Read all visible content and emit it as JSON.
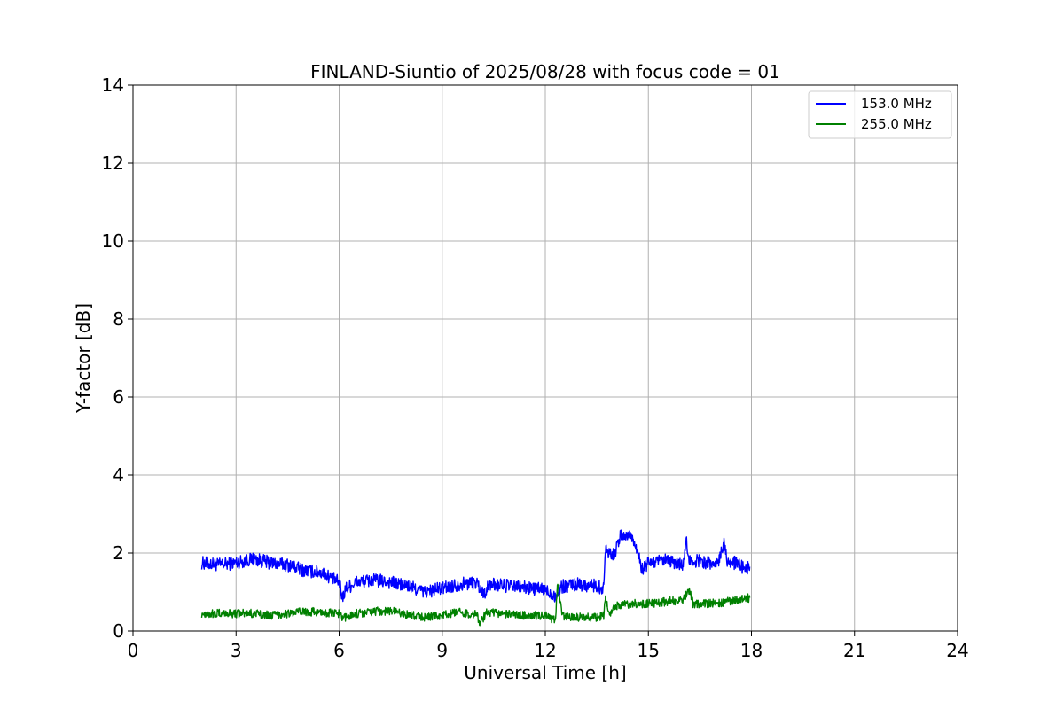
{
  "chart_data": {
    "type": "line",
    "title": "FINLAND-Siuntio of 2025/08/28 with focus code = 01",
    "xlabel": "Universal Time [h]",
    "ylabel": "Y-factor [dB]",
    "xlim": [
      0,
      24
    ],
    "ylim": [
      0,
      14
    ],
    "xticks": [
      0,
      3,
      6,
      9,
      12,
      15,
      18,
      21,
      24
    ],
    "yticks": [
      0,
      2,
      4,
      6,
      8,
      10,
      12,
      14
    ],
    "grid": true,
    "legend_position": "top-right",
    "series": [
      {
        "name": "153.0 MHz",
        "color": "#0000ff",
        "band": 0.35,
        "points": [
          [
            2.0,
            1.75
          ],
          [
            2.5,
            1.7
          ],
          [
            3.0,
            1.75
          ],
          [
            3.5,
            1.85
          ],
          [
            4.0,
            1.75
          ],
          [
            4.5,
            1.7
          ],
          [
            5.0,
            1.55
          ],
          [
            5.5,
            1.5
          ],
          [
            5.8,
            1.35
          ],
          [
            6.0,
            1.25
          ],
          [
            6.1,
            0.85
          ],
          [
            6.2,
            1.1
          ],
          [
            6.5,
            1.25
          ],
          [
            7.0,
            1.3
          ],
          [
            7.5,
            1.25
          ],
          [
            8.0,
            1.15
          ],
          [
            8.5,
            1.0
          ],
          [
            9.0,
            1.1
          ],
          [
            9.5,
            1.2
          ],
          [
            10.0,
            1.25
          ],
          [
            10.2,
            0.95
          ],
          [
            10.4,
            1.2
          ],
          [
            11.0,
            1.15
          ],
          [
            11.5,
            1.1
          ],
          [
            12.0,
            1.05
          ],
          [
            12.3,
            0.9
          ],
          [
            12.5,
            1.15
          ],
          [
            13.0,
            1.2
          ],
          [
            13.5,
            1.15
          ],
          [
            13.7,
            1.1
          ],
          [
            13.75,
            2.1
          ],
          [
            14.0,
            1.95
          ],
          [
            14.2,
            2.45
          ],
          [
            14.5,
            2.45
          ],
          [
            14.7,
            2.05
          ],
          [
            14.8,
            1.55
          ],
          [
            15.0,
            1.75
          ],
          [
            15.5,
            1.8
          ],
          [
            16.0,
            1.7
          ],
          [
            16.1,
            2.3
          ],
          [
            16.2,
            1.8
          ],
          [
            16.5,
            1.8
          ],
          [
            17.0,
            1.7
          ],
          [
            17.2,
            2.3
          ],
          [
            17.3,
            1.8
          ],
          [
            17.5,
            1.75
          ],
          [
            17.8,
            1.6
          ],
          [
            17.95,
            1.65
          ]
        ]
      },
      {
        "name": "255.0 MHz",
        "color": "#008000",
        "band": 0.22,
        "points": [
          [
            2.0,
            0.45
          ],
          [
            2.5,
            0.45
          ],
          [
            3.0,
            0.45
          ],
          [
            3.5,
            0.45
          ],
          [
            4.0,
            0.4
          ],
          [
            4.5,
            0.45
          ],
          [
            5.0,
            0.5
          ],
          [
            5.5,
            0.48
          ],
          [
            6.0,
            0.45
          ],
          [
            6.1,
            0.3
          ],
          [
            6.3,
            0.4
          ],
          [
            6.5,
            0.45
          ],
          [
            7.0,
            0.5
          ],
          [
            7.5,
            0.52
          ],
          [
            8.0,
            0.42
          ],
          [
            8.5,
            0.35
          ],
          [
            9.0,
            0.4
          ],
          [
            9.5,
            0.48
          ],
          [
            10.0,
            0.42
          ],
          [
            10.1,
            0.2
          ],
          [
            10.3,
            0.48
          ],
          [
            11.0,
            0.42
          ],
          [
            11.5,
            0.4
          ],
          [
            12.0,
            0.4
          ],
          [
            12.3,
            0.25
          ],
          [
            12.35,
            1.2
          ],
          [
            12.5,
            0.38
          ],
          [
            13.0,
            0.35
          ],
          [
            13.5,
            0.35
          ],
          [
            13.7,
            0.4
          ],
          [
            13.75,
            0.8
          ],
          [
            13.9,
            0.45
          ],
          [
            14.0,
            0.65
          ],
          [
            14.5,
            0.7
          ],
          [
            15.0,
            0.7
          ],
          [
            15.5,
            0.75
          ],
          [
            16.0,
            0.8
          ],
          [
            16.2,
            1.05
          ],
          [
            16.3,
            0.7
          ],
          [
            16.5,
            0.7
          ],
          [
            17.0,
            0.72
          ],
          [
            17.5,
            0.78
          ],
          [
            17.95,
            0.85
          ]
        ]
      }
    ]
  }
}
